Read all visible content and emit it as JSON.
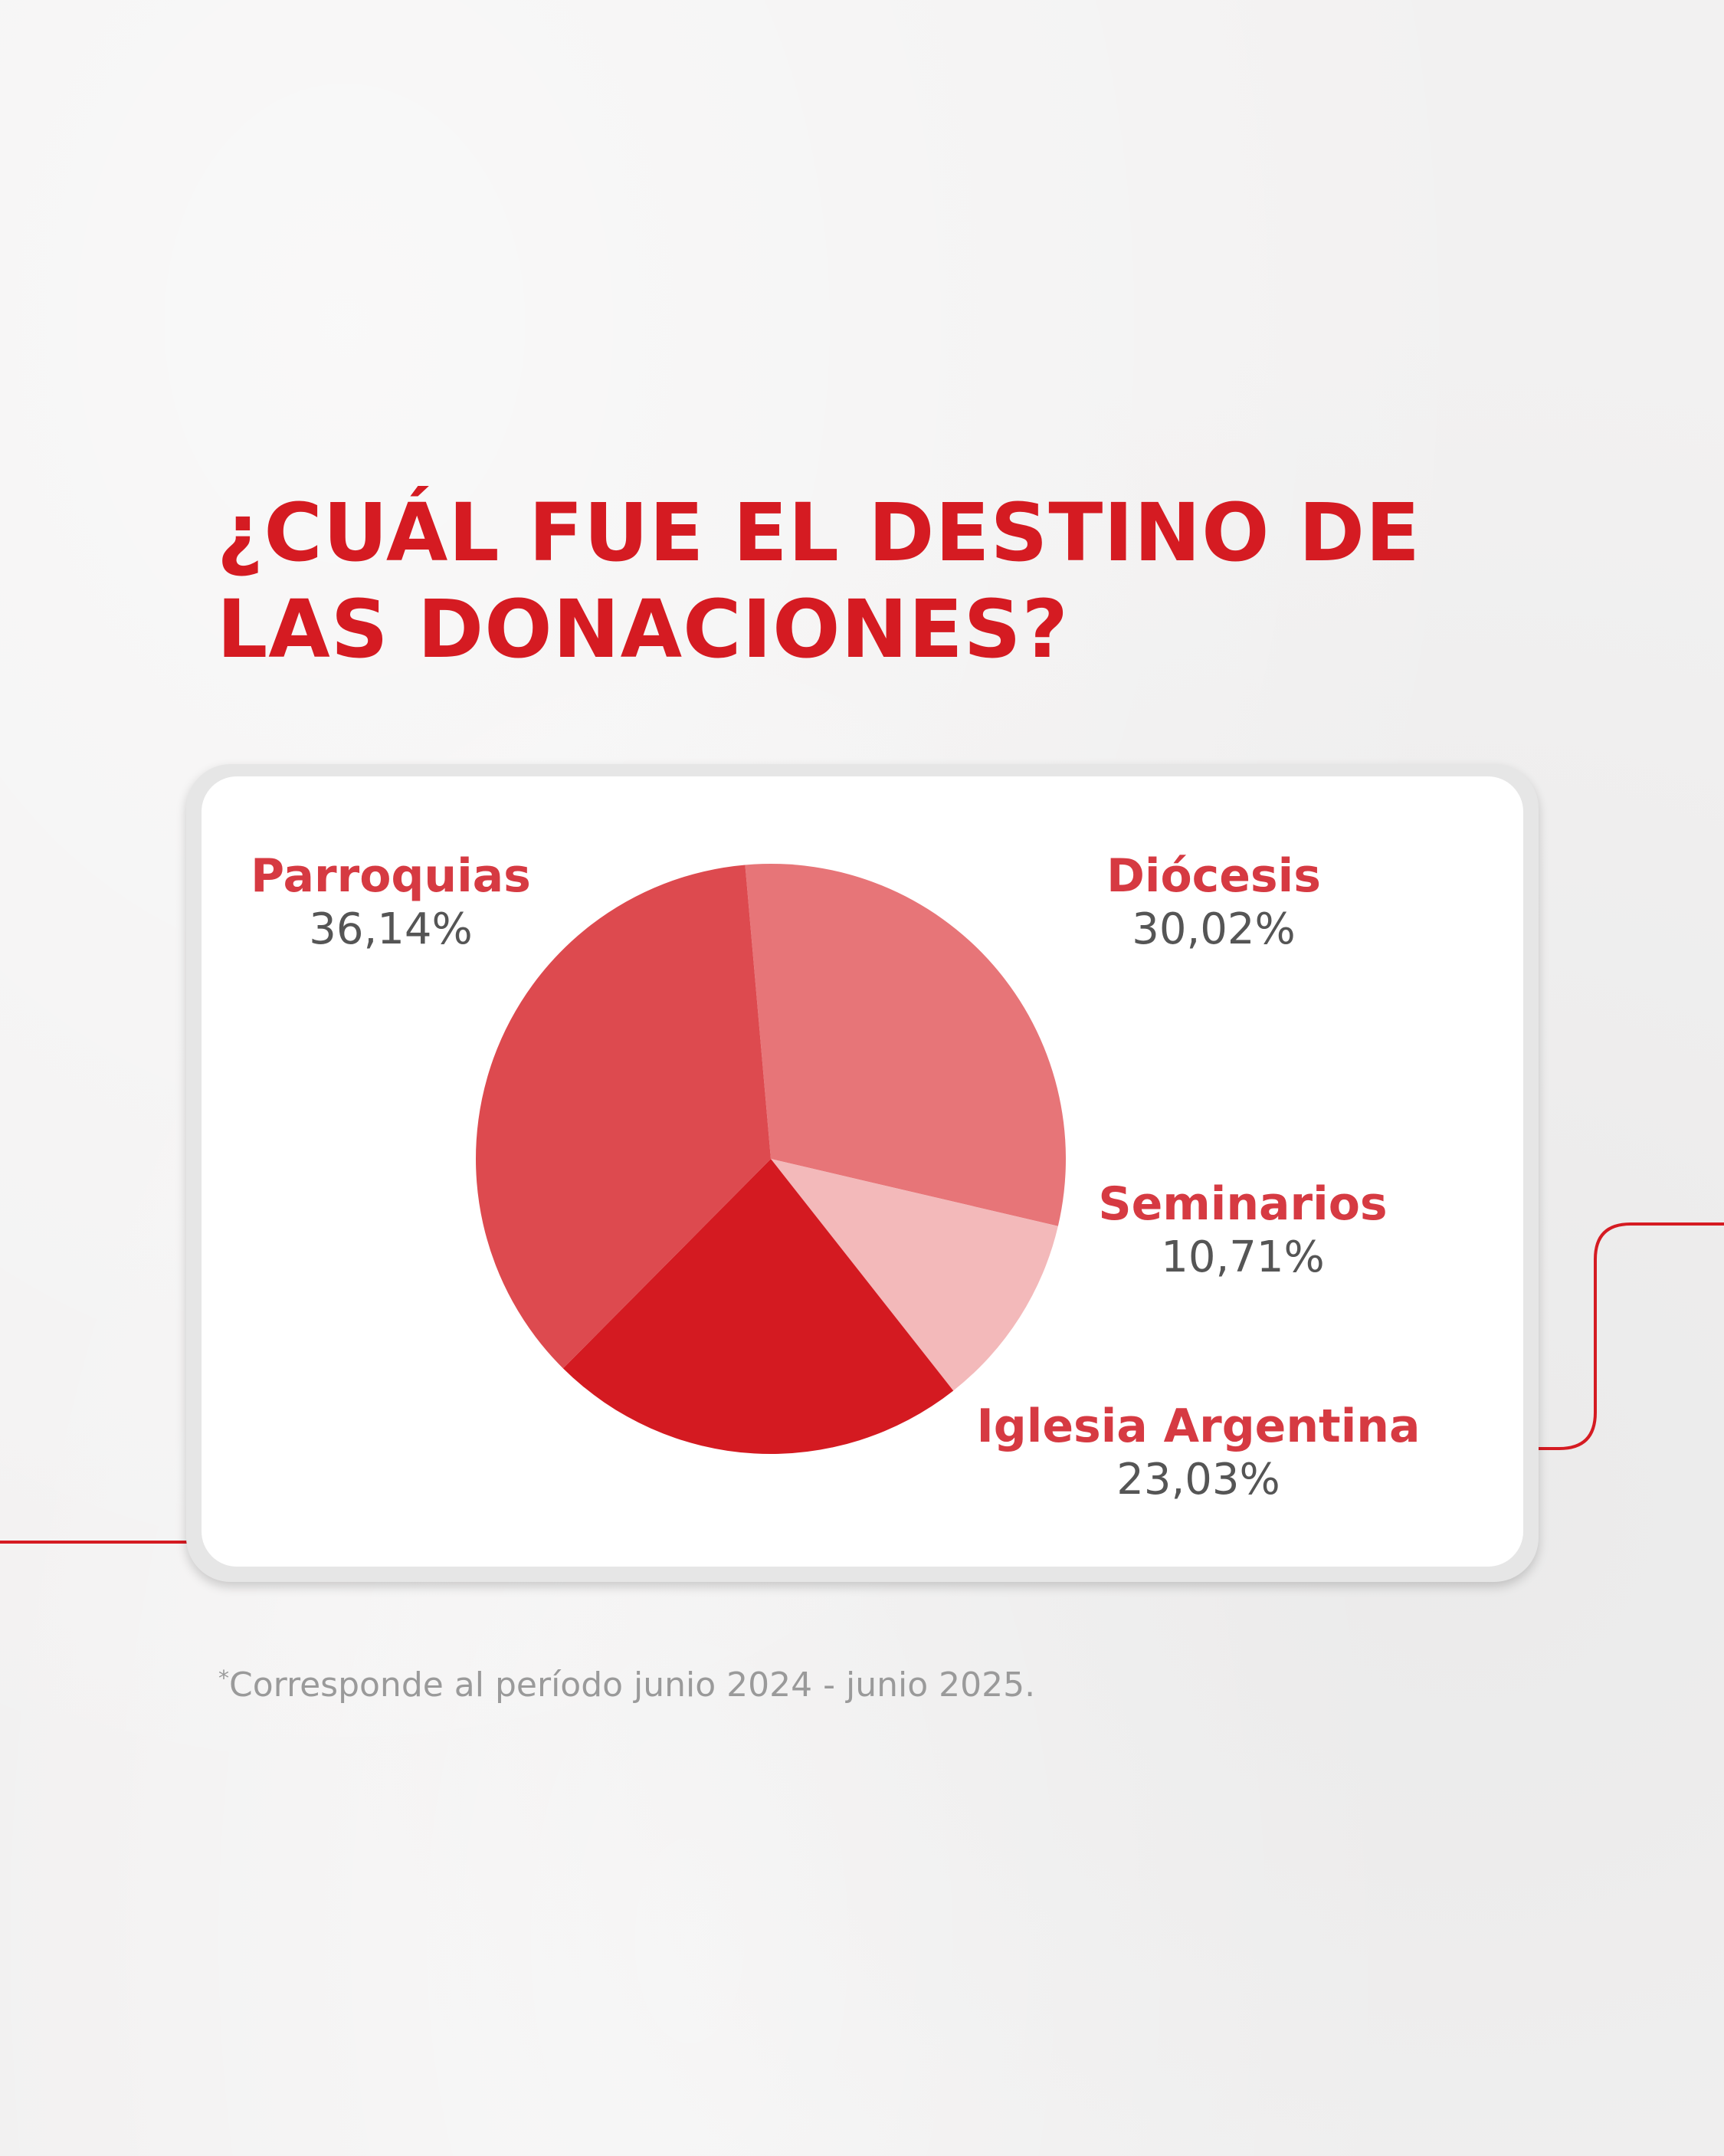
{
  "title_lines": [
    "¿CUÁL FUE EL DESTINO DE",
    "LAS DONACIONES?"
  ],
  "footnote": {
    "mark": "*",
    "text": "Corresponde al período junio 2024 - junio 2025."
  },
  "colors": {
    "accent": "#d51b22",
    "card": "#ffffff"
  },
  "chart_data": {
    "type": "pie",
    "title": "¿CUÁL FUE EL DESTINO DE LAS DONACIONES?",
    "slices": [
      {
        "label": "Diócesis",
        "value": 30.02,
        "display": "30,02%",
        "color": "#e77578"
      },
      {
        "label": "Seminarios",
        "value": 10.71,
        "display": "10,71%",
        "color": "#f3b9ba"
      },
      {
        "label": "Iglesia Argentina",
        "value": 23.03,
        "display": "23,03%",
        "color": "#d41a21"
      },
      {
        "label": "Parroquias",
        "value": 36.14,
        "display": "36,14%",
        "color": "#dd4a4f"
      }
    ],
    "legend": "labels-around"
  }
}
